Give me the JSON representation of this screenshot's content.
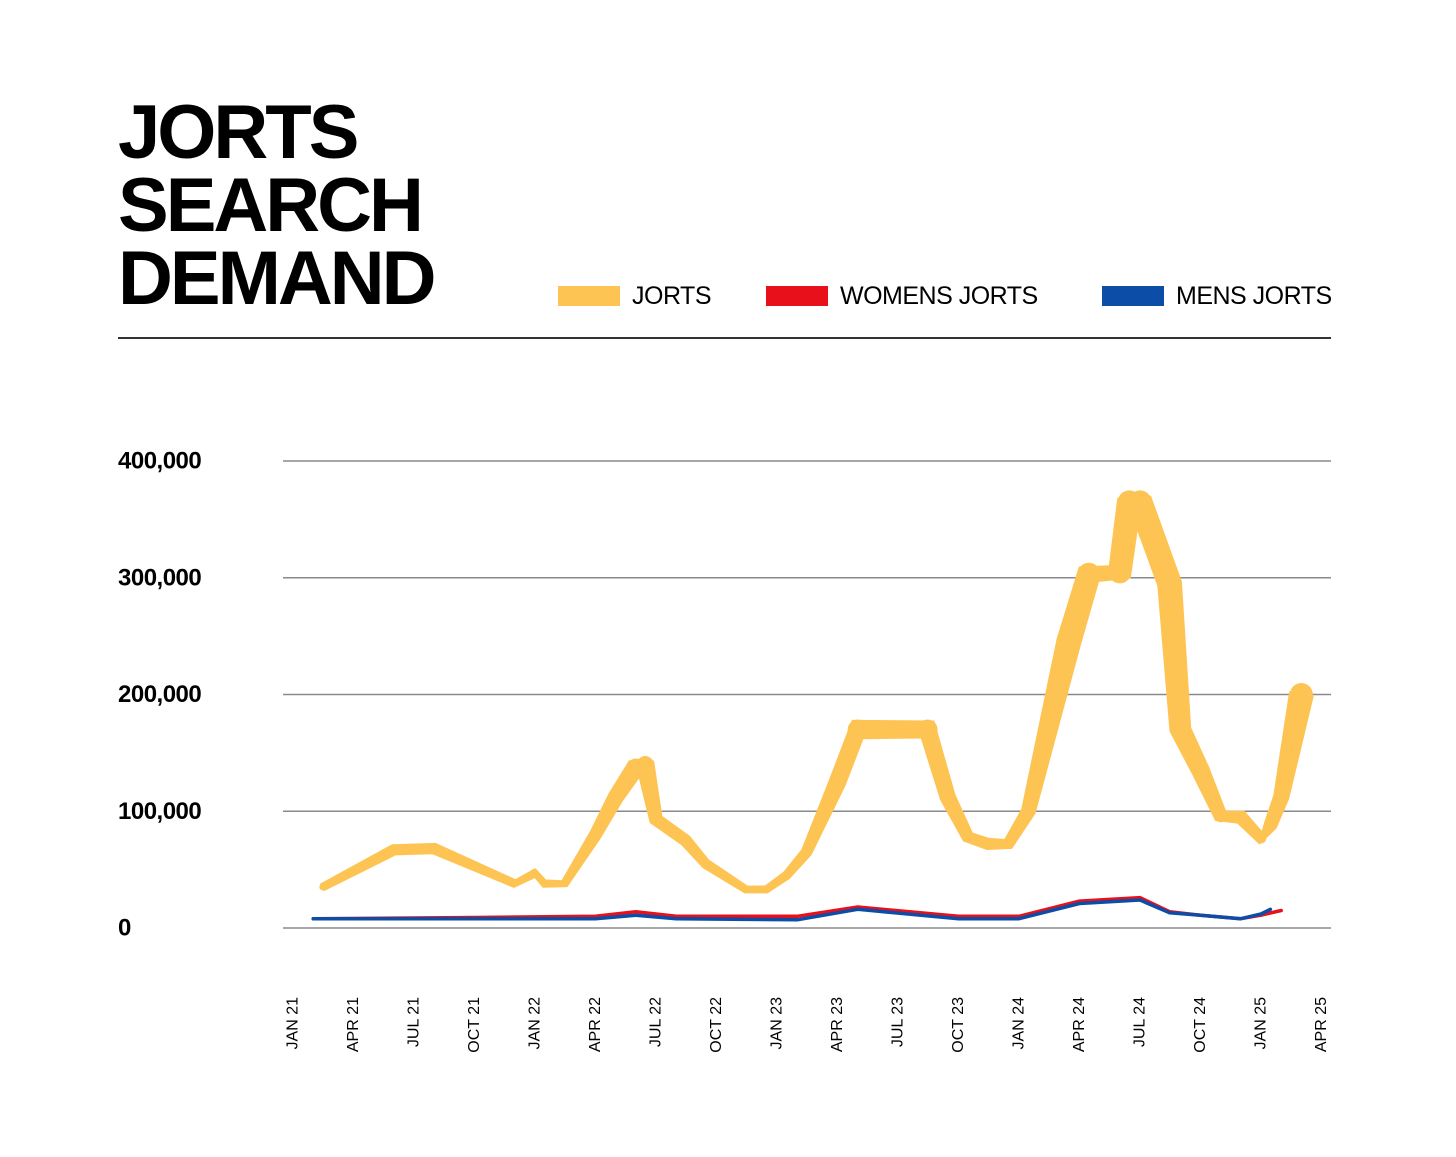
{
  "title_lines": [
    "JORTS",
    "SEARCH",
    "DEMAND"
  ],
  "legend": [
    {
      "label": "JORTS",
      "color": "#fdc453"
    },
    {
      "label": "WOMENS JORTS",
      "color": "#e8111b"
    },
    {
      "label": "MENS JORTS",
      "color": "#0b4da7"
    }
  ],
  "chart_data": {
    "type": "line",
    "title": "JORTS SEARCH DEMAND",
    "xlabel": "",
    "ylabel": "",
    "ylim": [
      0,
      400000
    ],
    "yticks": [
      0,
      100000,
      200000,
      300000,
      400000
    ],
    "ytick_labels": [
      "0",
      "100,000",
      "200,000",
      "300,000",
      "400,000"
    ],
    "xticks": [
      "2021-01",
      "2021-04",
      "2021-07",
      "2021-10",
      "2022-01",
      "2022-04",
      "2022-07",
      "2022-10",
      "2023-01",
      "2023-04",
      "2023-07",
      "2023-10",
      "2024-01",
      "2024-04",
      "2024-07",
      "2024-10",
      "2025-01",
      "2025-04"
    ],
    "xtick_labels": [
      "JAN 21",
      "APR 21",
      "JUL 21",
      "OCT 21",
      "JAN 22",
      "APR 22",
      "JUL 22",
      "OCT 22",
      "JAN 23",
      "APR 23",
      "JUL 23",
      "OCT 23",
      "JAN 24",
      "APR 24",
      "JUL 24",
      "OCT 24",
      "JAN 25",
      "APR 25"
    ],
    "grid": true,
    "legend_position": "top",
    "series": [
      {
        "name": "JORTS",
        "color": "#fdc453",
        "points": [
          [
            "2021-02-15",
            35000
          ],
          [
            "2021-06-01",
            67000
          ],
          [
            "2021-08-01",
            68000
          ],
          [
            "2021-12-01",
            38000
          ],
          [
            "2022-01-01",
            47000
          ],
          [
            "2022-01-15",
            38000
          ],
          [
            "2022-02-15",
            38000
          ],
          [
            "2022-04-01",
            80000
          ],
          [
            "2022-05-01",
            112000
          ],
          [
            "2022-06-01",
            138000
          ],
          [
            "2022-06-15",
            140000
          ],
          [
            "2022-07-01",
            93000
          ],
          [
            "2022-08-15",
            75000
          ],
          [
            "2022-09-15",
            55000
          ],
          [
            "2022-11-15",
            33000
          ],
          [
            "2022-12-15",
            33000
          ],
          [
            "2023-01-15",
            45000
          ],
          [
            "2023-02-15",
            65000
          ],
          [
            "2023-04-01",
            125000
          ],
          [
            "2023-05-01",
            170000
          ],
          [
            "2023-08-15",
            170000
          ],
          [
            "2023-09-15",
            112000
          ],
          [
            "2023-10-15",
            78000
          ],
          [
            "2023-11-15",
            72000
          ],
          [
            "2023-12-15",
            72000
          ],
          [
            "2024-01-15",
            100000
          ],
          [
            "2024-03-15",
            245000
          ],
          [
            "2024-04-15",
            303000
          ],
          [
            "2024-06-01",
            305000
          ],
          [
            "2024-06-15",
            365000
          ],
          [
            "2024-07-01",
            365000
          ],
          [
            "2024-08-15",
            295000
          ],
          [
            "2024-09-01",
            170000
          ],
          [
            "2024-10-01",
            135000
          ],
          [
            "2024-11-01",
            96000
          ],
          [
            "2024-12-01",
            95000
          ],
          [
            "2025-01-01",
            77000
          ],
          [
            "2025-01-15",
            88000
          ],
          [
            "2025-02-01",
            112000
          ],
          [
            "2025-03-01",
            200000
          ]
        ]
      },
      {
        "name": "WOMENS JORTS",
        "color": "#e8111b",
        "points": [
          [
            "2021-02-01",
            8000
          ],
          [
            "2021-10-01",
            9000
          ],
          [
            "2022-04-01",
            10000
          ],
          [
            "2022-06-01",
            14000
          ],
          [
            "2022-08-01",
            10000
          ],
          [
            "2023-02-01",
            10000
          ],
          [
            "2023-05-01",
            18000
          ],
          [
            "2023-10-01",
            10000
          ],
          [
            "2024-01-01",
            10000
          ],
          [
            "2024-04-01",
            23000
          ],
          [
            "2024-07-01",
            26000
          ],
          [
            "2024-08-15",
            14000
          ],
          [
            "2024-10-01",
            11000
          ],
          [
            "2024-12-01",
            8000
          ],
          [
            "2025-01-01",
            11000
          ],
          [
            "2025-02-01",
            15000
          ]
        ]
      },
      {
        "name": "MENS JORTS",
        "color": "#0b4da7",
        "points": [
          [
            "2021-02-01",
            8000
          ],
          [
            "2021-10-01",
            8000
          ],
          [
            "2022-04-01",
            8000
          ],
          [
            "2022-06-01",
            11000
          ],
          [
            "2022-08-01",
            8000
          ],
          [
            "2023-02-01",
            7000
          ],
          [
            "2023-05-01",
            16000
          ],
          [
            "2023-10-01",
            8000
          ],
          [
            "2024-01-01",
            8000
          ],
          [
            "2024-04-01",
            21000
          ],
          [
            "2024-07-01",
            24000
          ],
          [
            "2024-08-15",
            13000
          ],
          [
            "2024-10-01",
            11000
          ],
          [
            "2024-12-01",
            8000
          ],
          [
            "2025-01-01",
            12000
          ],
          [
            "2025-01-15",
            16000
          ]
        ]
      }
    ]
  }
}
